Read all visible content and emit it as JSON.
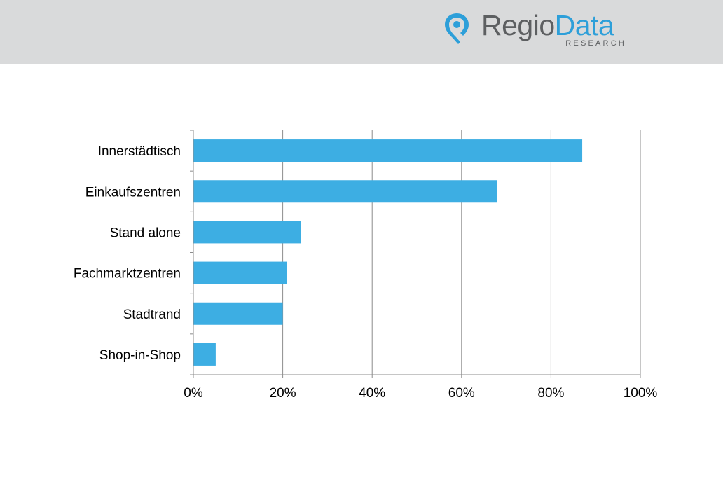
{
  "header": {
    "logo_word_1": "Regio",
    "logo_word_2": "Data",
    "logo_sub": "RESEARCH"
  },
  "colors": {
    "header_bg": "#d9dadb",
    "bar": "#3daee3",
    "logo_blue": "#2d9fd9",
    "logo_gray": "#5d5f61"
  },
  "chart_data": {
    "type": "bar",
    "orientation": "horizontal",
    "title": "",
    "xlabel": "",
    "ylabel": "",
    "categories": [
      "Innerstädtisch",
      "Einkaufszentren",
      "Stand alone",
      "Fachmarktzentren",
      "Stadtrand",
      "Shop-in-Shop"
    ],
    "values": [
      87,
      68,
      24,
      21,
      20,
      5
    ],
    "xlim": [
      0,
      100
    ],
    "x_ticks": [
      0,
      20,
      40,
      60,
      80,
      100
    ],
    "x_tick_labels": [
      "0%",
      "20%",
      "40%",
      "60%",
      "80%",
      "100%"
    ],
    "grid": true,
    "legend": "none"
  }
}
